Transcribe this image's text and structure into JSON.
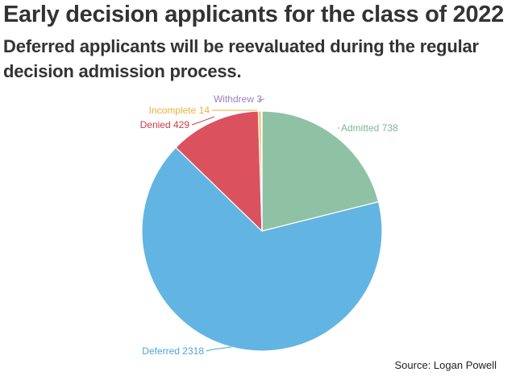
{
  "header": {
    "title": "Early decision applicants for the class of 2022",
    "subtitle": "Deferred applicants will be reevaluated during the regular decision admission process."
  },
  "footer": {
    "source": "Source: Logan Powell"
  },
  "chart_data": {
    "type": "pie",
    "title": "Early decision applicants for the class of 2022",
    "subtitle": "Deferred applicants will be reevaluated during the regular decision admission process.",
    "start_angle_deg": 0,
    "direction": "clockwise",
    "legend": "none",
    "slices": [
      {
        "label": "Admitted",
        "value": 738,
        "color": "#8fc1a5",
        "label_text": "Admitted 738"
      },
      {
        "label": "Deferred",
        "value": 2318,
        "color": "#62b5e2",
        "label_text": "Deferred 2318"
      },
      {
        "label": "Denied",
        "value": 429,
        "color": "#db525e",
        "label_text": "Denied 429"
      },
      {
        "label": "Incomplete",
        "value": 14,
        "color": "#f3c35c",
        "label_text": "Incomplete 14"
      },
      {
        "label": "Withdrew",
        "value": 3,
        "color": "#a78ac6",
        "label_text": "Withdrew 3"
      }
    ]
  }
}
